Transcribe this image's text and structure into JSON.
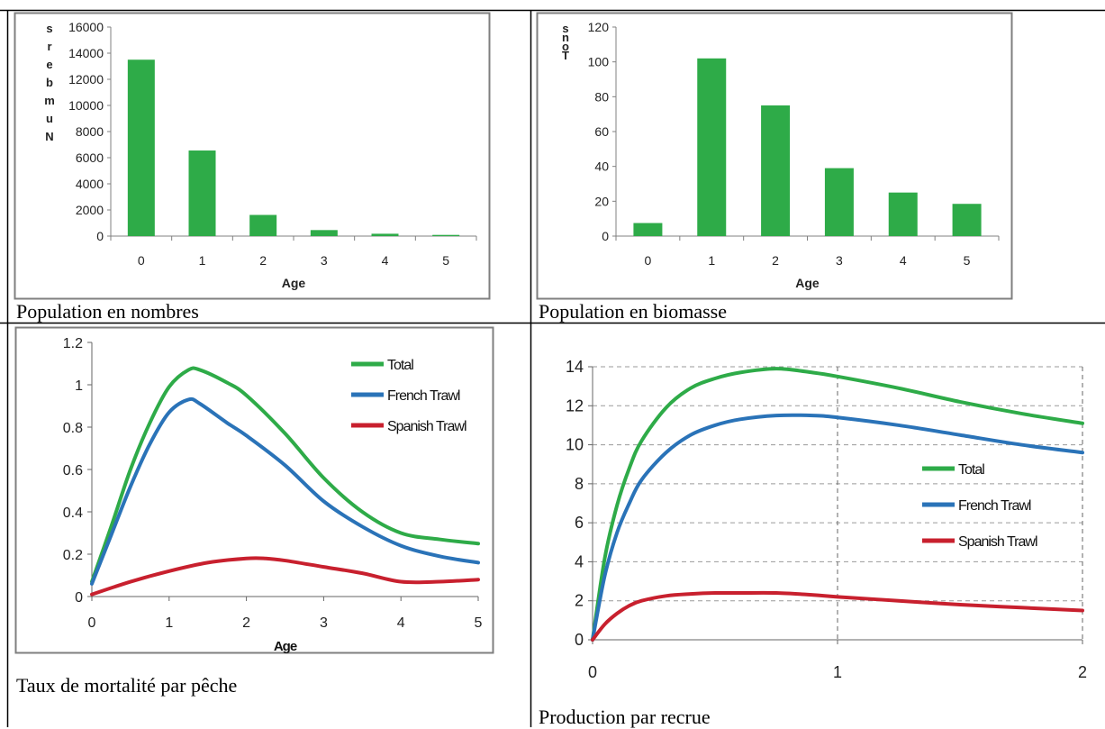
{
  "colors": {
    "green": "#2eab48",
    "blue": "#2a73b8",
    "red": "#c8202e",
    "axis": "#808080",
    "grid": "#9a9a9a"
  },
  "captions": {
    "c1": "Population en nombres",
    "c2": "Population en biomasse",
    "c3": "Taux de mortalité par pêche",
    "c4": "Production par recrue"
  },
  "chart_data": [
    {
      "type": "bar",
      "xlabel": "Age",
      "ylabel": "Numbers",
      "categories": [
        "0",
        "1",
        "2",
        "3",
        "4",
        "5"
      ],
      "values": [
        13500,
        6550,
        1620,
        460,
        180,
        90
      ],
      "ylim": [
        0,
        16000
      ],
      "yticks": [
        "0",
        "2000",
        "4000",
        "6000",
        "8000",
        "10000",
        "12000",
        "14000",
        "16000"
      ]
    },
    {
      "type": "bar",
      "xlabel": "Age",
      "ylabel": "Tons",
      "categories": [
        "0",
        "1",
        "2",
        "3",
        "4",
        "5"
      ],
      "values": [
        7.5,
        102,
        75,
        39,
        25,
        18.5
      ],
      "ylim": [
        0,
        120
      ],
      "yticks": [
        "0",
        "20",
        "40",
        "60",
        "80",
        "100",
        "120"
      ]
    },
    {
      "type": "line",
      "xlabel": "Age",
      "xlim": [
        0,
        5
      ],
      "ylim": [
        0,
        1.2
      ],
      "xticks": [
        "0",
        "1",
        "2",
        "3",
        "4",
        "5"
      ],
      "yticks": [
        "0",
        "0.2",
        "0.4",
        "0.6",
        "0.8",
        "1",
        "1.2"
      ],
      "legend": "top-right",
      "series": [
        {
          "name": "Total",
          "x": [
            0,
            0.25,
            0.5,
            0.75,
            1,
            1.25,
            1.4,
            1.75,
            2,
            2.5,
            3,
            3.5,
            4,
            4.5,
            5
          ],
          "y": [
            0.07,
            0.33,
            0.6,
            0.82,
            0.99,
            1.07,
            1.07,
            1.01,
            0.95,
            0.77,
            0.56,
            0.4,
            0.3,
            0.27,
            0.25
          ]
        },
        {
          "name": "French Trawl",
          "x": [
            0,
            0.25,
            0.5,
            0.75,
            1,
            1.25,
            1.4,
            1.75,
            2,
            2.5,
            3,
            3.5,
            4,
            4.5,
            5
          ],
          "y": [
            0.06,
            0.29,
            0.52,
            0.72,
            0.87,
            0.93,
            0.91,
            0.82,
            0.76,
            0.62,
            0.45,
            0.33,
            0.24,
            0.19,
            0.16
          ]
        },
        {
          "name": "Spanish Trawl",
          "x": [
            0,
            0.5,
            1,
            1.5,
            2,
            2.25,
            2.5,
            3,
            3.5,
            4,
            4.5,
            5
          ],
          "y": [
            0.01,
            0.07,
            0.12,
            0.16,
            0.18,
            0.18,
            0.17,
            0.14,
            0.11,
            0.07,
            0.07,
            0.08
          ]
        }
      ]
    },
    {
      "type": "line",
      "xlim": [
        0,
        2
      ],
      "ylim": [
        0,
        14
      ],
      "xticks": [
        "0",
        "1",
        "2"
      ],
      "yticks": [
        "0",
        "2",
        "4",
        "6",
        "8",
        "10",
        "12",
        "14"
      ],
      "grid": true,
      "legend": "right",
      "series": [
        {
          "name": "Total",
          "x": [
            0,
            0.05,
            0.1,
            0.15,
            0.2,
            0.3,
            0.4,
            0.5,
            0.6,
            0.75,
            0.9,
            1,
            1.25,
            1.5,
            1.75,
            2
          ],
          "y": [
            0,
            4.2,
            6.9,
            8.8,
            10.2,
            11.9,
            12.9,
            13.4,
            13.7,
            13.9,
            13.7,
            13.5,
            12.9,
            12.2,
            11.6,
            11.1
          ]
        },
        {
          "name": "French Trawl",
          "x": [
            0,
            0.05,
            0.1,
            0.15,
            0.2,
            0.3,
            0.4,
            0.5,
            0.6,
            0.75,
            0.9,
            1,
            1.25,
            1.5,
            1.75,
            2
          ],
          "y": [
            0,
            3.3,
            5.5,
            7,
            8.2,
            9.6,
            10.5,
            11,
            11.3,
            11.5,
            11.5,
            11.4,
            11,
            10.5,
            10,
            9.6
          ]
        },
        {
          "name": "Spanish Trawl",
          "x": [
            0,
            0.05,
            0.1,
            0.15,
            0.2,
            0.3,
            0.4,
            0.5,
            0.6,
            0.75,
            0.9,
            1,
            1.25,
            1.5,
            1.75,
            2
          ],
          "y": [
            0,
            0.8,
            1.35,
            1.75,
            2,
            2.25,
            2.35,
            2.4,
            2.4,
            2.4,
            2.3,
            2.2,
            2,
            1.8,
            1.65,
            1.5
          ]
        }
      ]
    }
  ]
}
